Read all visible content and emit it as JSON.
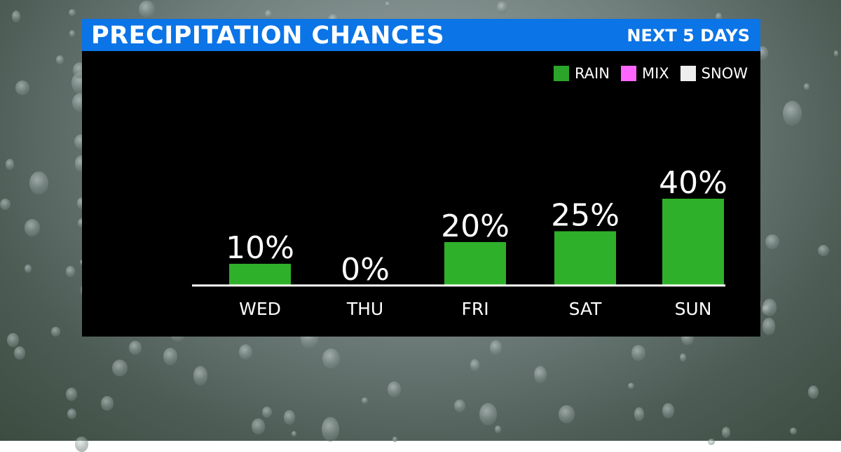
{
  "header": {
    "title": "PRECIPITATION CHANCES",
    "subtitle": "NEXT 5 DAYS"
  },
  "legend": [
    {
      "label": "RAIN",
      "color": "#2aa52a"
    },
    {
      "label": "MIX",
      "color": "#ff66ff"
    },
    {
      "label": "SNOW",
      "color": "#eeeeee"
    }
  ],
  "chart_data": {
    "type": "bar",
    "categories": [
      "WED",
      "THU",
      "FRI",
      "SAT",
      "SUN"
    ],
    "values": [
      10,
      0,
      20,
      25,
      40
    ],
    "data_labels": [
      "10%",
      "0%",
      "20%",
      "25%",
      "40%"
    ],
    "series": [
      {
        "name": "RAIN",
        "values": [
          10,
          0,
          20,
          25,
          40
        ]
      }
    ],
    "title": "PRECIPITATION CHANCES",
    "subtitle": "NEXT 5 DAYS",
    "unit": "%",
    "bar_color": "#2fb02a",
    "grid": false,
    "legend_position": "top-right"
  }
}
